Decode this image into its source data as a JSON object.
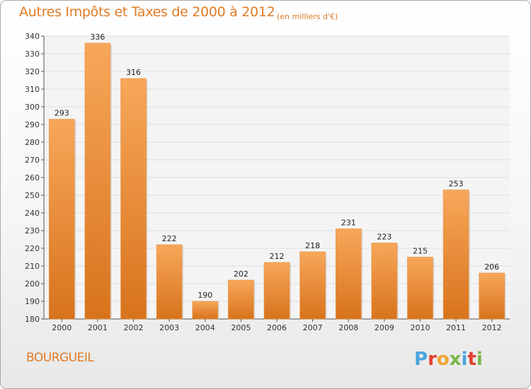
{
  "title": "Autres Impôts et Taxes de 2000 à 2012",
  "subtitle": "(en milliers d'€)",
  "place": "BOURGUEIL",
  "logo_text": "Proxiti",
  "colors": {
    "accent": "#e07b25",
    "bar_top": "#f7a75a",
    "bar_bottom": "#d8731c",
    "grid": "#dedede",
    "logo": [
      "#4aa3df",
      "#e2402f",
      "#f0a330",
      "#7ab648",
      "#4aa3df",
      "#e2402f",
      "#7ab648"
    ]
  },
  "chart_data": {
    "type": "bar",
    "categories": [
      "2000",
      "2001",
      "2002",
      "2003",
      "2004",
      "2005",
      "2006",
      "2007",
      "2008",
      "2009",
      "2010",
      "2011",
      "2012"
    ],
    "values": [
      293,
      336,
      316,
      222,
      190,
      202,
      212,
      218,
      231,
      223,
      215,
      253,
      206
    ],
    "ylim": [
      180,
      340
    ],
    "yticks": [
      180,
      190,
      200,
      210,
      220,
      230,
      240,
      250,
      260,
      270,
      280,
      290,
      300,
      310,
      320,
      330,
      340
    ],
    "grid": true,
    "data_labels": true,
    "xlabel": "",
    "ylabel": ""
  }
}
